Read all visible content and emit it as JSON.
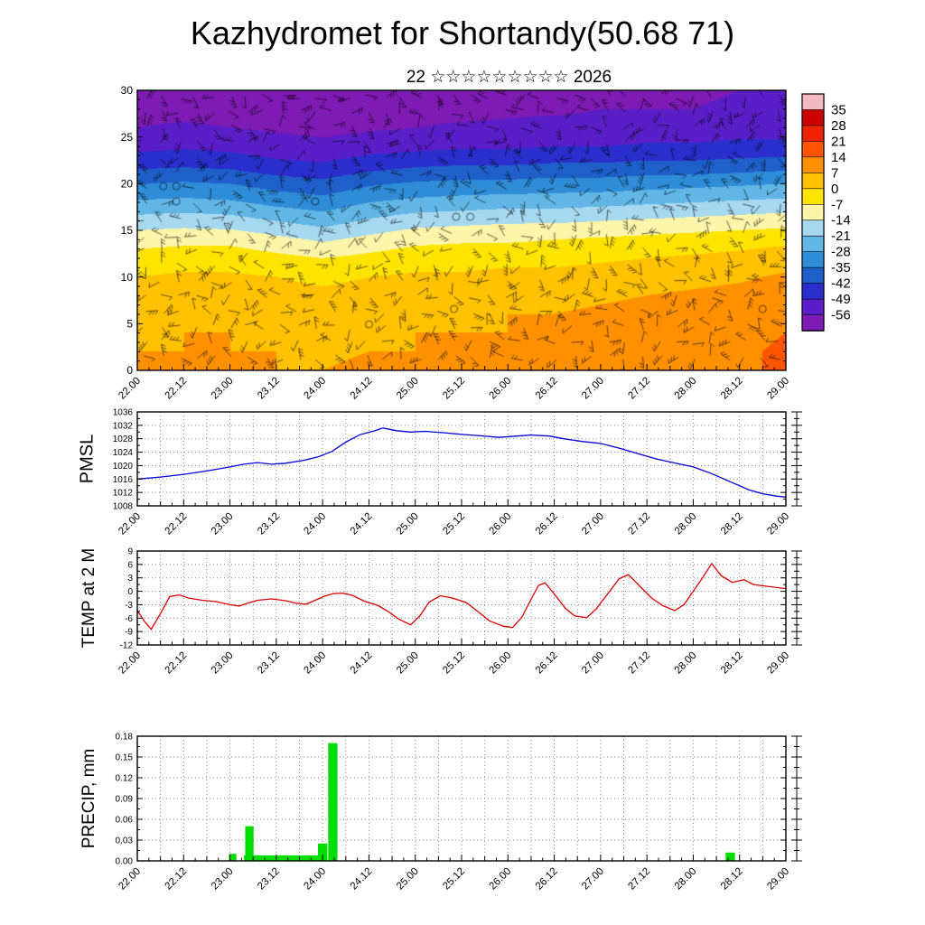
{
  "title": "Kazhydromet for Shortandy(50.68 71)",
  "subtitle": "22 ☆☆☆☆☆☆☆☆☆ 2026",
  "x_axis": {
    "start": 22,
    "end": 29,
    "values": [
      22.0,
      22.5,
      23.0,
      23.5,
      24.0,
      24.5,
      25.0,
      25.5,
      26.0,
      26.5,
      27.0,
      27.5,
      28.0,
      28.5,
      29.0
    ],
    "labels": [
      "22.00",
      "22.12",
      "23.00",
      "23.12",
      "24.00",
      "24.12",
      "25.00",
      "25.12",
      "26.00",
      "26.12",
      "27.00",
      "27.12",
      "28.00",
      "28.12",
      "29.00"
    ]
  },
  "chart_data": [
    {
      "type": "heatmap",
      "name": "wind-temperature-height-time-section",
      "overlay": "wind-barbs",
      "ylim": [
        0,
        30
      ],
      "yticks": [
        0,
        5,
        10,
        15,
        20,
        25,
        30
      ],
      "x": [
        22.0,
        22.5,
        23.0,
        23.5,
        24.0,
        24.5,
        25.0,
        25.5,
        26.0,
        26.5,
        27.0,
        27.5,
        28.0,
        28.5,
        29.0
      ],
      "y": [
        0,
        2,
        4,
        6,
        8,
        10,
        12,
        14,
        16,
        18,
        20,
        22,
        24,
        26,
        28,
        30
      ],
      "values": [
        [
          7,
          8,
          8,
          7,
          7,
          8,
          8,
          8,
          8,
          9,
          9,
          10,
          11,
          13,
          15
        ],
        [
          7,
          7,
          7,
          7,
          6,
          7,
          7,
          8,
          8,
          8,
          9,
          10,
          11,
          13,
          15
        ],
        [
          6,
          7,
          7,
          6,
          5,
          6,
          7,
          7,
          7,
          8,
          9,
          9,
          10,
          12,
          14
        ],
        [
          5,
          6,
          6,
          5,
          4,
          5,
          6,
          6,
          7,
          7,
          8,
          9,
          10,
          11,
          13
        ],
        [
          3,
          4,
          4,
          3,
          2,
          3,
          4,
          4,
          5,
          5,
          6,
          7,
          8,
          9,
          11
        ],
        [
          0,
          1,
          1,
          0,
          -2,
          0,
          1,
          1,
          2,
          2,
          3,
          4,
          5,
          6,
          8
        ],
        [
          -4,
          -3,
          -3,
          -5,
          -7,
          -5,
          -3,
          -3,
          -2,
          -2,
          -1,
          0,
          1,
          2,
          4
        ],
        [
          -10,
          -9,
          -9,
          -12,
          -15,
          -12,
          -9,
          -8,
          -8,
          -7,
          -6,
          -5,
          -4,
          -3,
          -2
        ],
        [
          -18,
          -17,
          -18,
          -21,
          -24,
          -20,
          -17,
          -16,
          -15,
          -15,
          -14,
          -13,
          -12,
          -11,
          -10
        ],
        [
          -27,
          -26,
          -27,
          -30,
          -32,
          -28,
          -26,
          -25,
          -24,
          -24,
          -23,
          -22,
          -21,
          -20,
          -19
        ],
        [
          -35,
          -34,
          -35,
          -38,
          -40,
          -36,
          -34,
          -33,
          -33,
          -32,
          -32,
          -31,
          -30,
          -29,
          -28
        ],
        [
          -44,
          -43,
          -44,
          -47,
          -48,
          -45,
          -43,
          -42,
          -42,
          -41,
          -41,
          -40,
          -40,
          -39,
          -38
        ],
        [
          -51,
          -50,
          -51,
          -53,
          -54,
          -52,
          -51,
          -50,
          -50,
          -49,
          -49,
          -48,
          -48,
          -47,
          -47
        ],
        [
          -56,
          -55,
          -56,
          -57,
          -58,
          -57,
          -56,
          -55,
          -55,
          -54,
          -54,
          -53,
          -53,
          -52,
          -52
        ],
        [
          -58,
          -58,
          -58,
          -59,
          -60,
          -59,
          -58,
          -58,
          -57,
          -57,
          -56,
          -56,
          -56,
          -55,
          -55
        ],
        [
          -60,
          -60,
          -60,
          -60,
          -61,
          -60,
          -60,
          -59,
          -59,
          -58,
          -58,
          -57,
          -57,
          -56,
          -56
        ]
      ],
      "colorbar": {
        "levels": [
          35,
          28,
          21,
          14,
          7,
          0,
          -7,
          -14,
          -21,
          -28,
          -35,
          -42,
          -49,
          -56
        ],
        "colors": [
          "#f2b8c6",
          "#cc0000",
          "#ee2200",
          "#ff5500",
          "#ff9100",
          "#ffc100",
          "#ffe400",
          "#fdf5aa",
          "#a6d8f0",
          "#62b6e6",
          "#2f8cd6",
          "#1f5fca",
          "#2a2ecc",
          "#5a1ec8",
          "#7d1bb4"
        ]
      }
    },
    {
      "type": "line",
      "ylabel": "PMSL",
      "color": "#0000dd",
      "ylim": [
        1008,
        1036
      ],
      "yticks": [
        1008,
        1012,
        1016,
        1020,
        1024,
        1028,
        1032,
        1036
      ],
      "points": [
        [
          22.0,
          1016.0
        ],
        [
          22.25,
          1016.6
        ],
        [
          22.5,
          1017.4
        ],
        [
          22.75,
          1018.4
        ],
        [
          23.0,
          1019.6
        ],
        [
          23.15,
          1020.4
        ],
        [
          23.3,
          1020.9
        ],
        [
          23.45,
          1020.4
        ],
        [
          23.6,
          1020.7
        ],
        [
          23.8,
          1021.6
        ],
        [
          23.95,
          1022.6
        ],
        [
          24.1,
          1024.2
        ],
        [
          24.25,
          1027.0
        ],
        [
          24.4,
          1029.2
        ],
        [
          24.55,
          1030.3
        ],
        [
          24.65,
          1031.2
        ],
        [
          24.8,
          1030.4
        ],
        [
          24.95,
          1030.0
        ],
        [
          25.1,
          1030.2
        ],
        [
          25.3,
          1029.8
        ],
        [
          25.5,
          1029.3
        ],
        [
          25.7,
          1028.9
        ],
        [
          25.9,
          1028.4
        ],
        [
          26.1,
          1028.8
        ],
        [
          26.25,
          1029.1
        ],
        [
          26.45,
          1028.8
        ],
        [
          26.6,
          1028.0
        ],
        [
          26.8,
          1027.2
        ],
        [
          27.0,
          1026.6
        ],
        [
          27.2,
          1025.2
        ],
        [
          27.4,
          1023.6
        ],
        [
          27.6,
          1022.0
        ],
        [
          27.8,
          1020.8
        ],
        [
          28.0,
          1019.6
        ],
        [
          28.2,
          1017.6
        ],
        [
          28.4,
          1015.2
        ],
        [
          28.6,
          1012.8
        ],
        [
          28.75,
          1011.6
        ],
        [
          28.9,
          1010.9
        ],
        [
          29.0,
          1010.6
        ]
      ]
    },
    {
      "type": "line",
      "ylabel": "TEMP at 2 M",
      "color": "#dd0000",
      "ylim": [
        -12,
        9
      ],
      "yticks": [
        -12,
        -9,
        -6,
        -3,
        0,
        3,
        6,
        9
      ],
      "points": [
        [
          22.0,
          -4.3
        ],
        [
          22.08,
          -6.8
        ],
        [
          22.15,
          -8.5
        ],
        [
          22.25,
          -5.0
        ],
        [
          22.35,
          -1.2
        ],
        [
          22.45,
          -0.8
        ],
        [
          22.55,
          -1.5
        ],
        [
          22.7,
          -2.0
        ],
        [
          22.85,
          -2.3
        ],
        [
          23.0,
          -3.0
        ],
        [
          23.1,
          -3.3
        ],
        [
          23.2,
          -2.6
        ],
        [
          23.3,
          -2.0
        ],
        [
          23.45,
          -1.7
        ],
        [
          23.6,
          -2.1
        ],
        [
          23.72,
          -2.7
        ],
        [
          23.82,
          -2.9
        ],
        [
          23.92,
          -2.0
        ],
        [
          24.02,
          -1.1
        ],
        [
          24.12,
          -0.5
        ],
        [
          24.22,
          -0.4
        ],
        [
          24.32,
          -0.9
        ],
        [
          24.45,
          -2.2
        ],
        [
          24.6,
          -3.2
        ],
        [
          24.7,
          -4.4
        ],
        [
          24.82,
          -6.2
        ],
        [
          24.95,
          -7.5
        ],
        [
          25.05,
          -5.5
        ],
        [
          25.15,
          -2.4
        ],
        [
          25.27,
          -1.0
        ],
        [
          25.4,
          -1.5
        ],
        [
          25.55,
          -2.5
        ],
        [
          25.68,
          -4.6
        ],
        [
          25.8,
          -6.6
        ],
        [
          25.95,
          -7.8
        ],
        [
          26.05,
          -8.1
        ],
        [
          26.15,
          -5.8
        ],
        [
          26.25,
          -1.8
        ],
        [
          26.33,
          1.3
        ],
        [
          26.4,
          1.9
        ],
        [
          26.5,
          -0.6
        ],
        [
          26.62,
          -3.8
        ],
        [
          26.72,
          -5.5
        ],
        [
          26.85,
          -5.9
        ],
        [
          26.95,
          -4.0
        ],
        [
          27.08,
          -0.5
        ],
        [
          27.2,
          2.8
        ],
        [
          27.3,
          3.7
        ],
        [
          27.42,
          1.2
        ],
        [
          27.55,
          -1.5
        ],
        [
          27.67,
          -3.2
        ],
        [
          27.8,
          -4.3
        ],
        [
          27.9,
          -3.0
        ],
        [
          28.0,
          0.0
        ],
        [
          28.1,
          3.0
        ],
        [
          28.2,
          6.2
        ],
        [
          28.3,
          3.5
        ],
        [
          28.42,
          2.0
        ],
        [
          28.55,
          2.6
        ],
        [
          28.65,
          1.5
        ],
        [
          28.8,
          1.1
        ],
        [
          29.0,
          0.6
        ]
      ]
    },
    {
      "type": "bar",
      "ylabel": "PRECIP, mm",
      "color": "#00dd00",
      "ylim": [
        0,
        0.18
      ],
      "yticks": [
        0.0,
        0.03,
        0.06,
        0.09,
        0.12,
        0.15,
        0.18
      ],
      "bars": [
        {
          "t": 23.03,
          "v": 0.01,
          "w": 0.08
        },
        {
          "t": 23.21,
          "v": 0.05,
          "w": 0.09
        },
        {
          "t": 23.6,
          "v": 0.008,
          "w": 0.9
        },
        {
          "t": 24.0,
          "v": 0.025,
          "w": 0.1
        },
        {
          "t": 24.11,
          "v": 0.17,
          "w": 0.1
        },
        {
          "t": 28.4,
          "v": 0.012,
          "w": 0.1
        }
      ]
    }
  ]
}
